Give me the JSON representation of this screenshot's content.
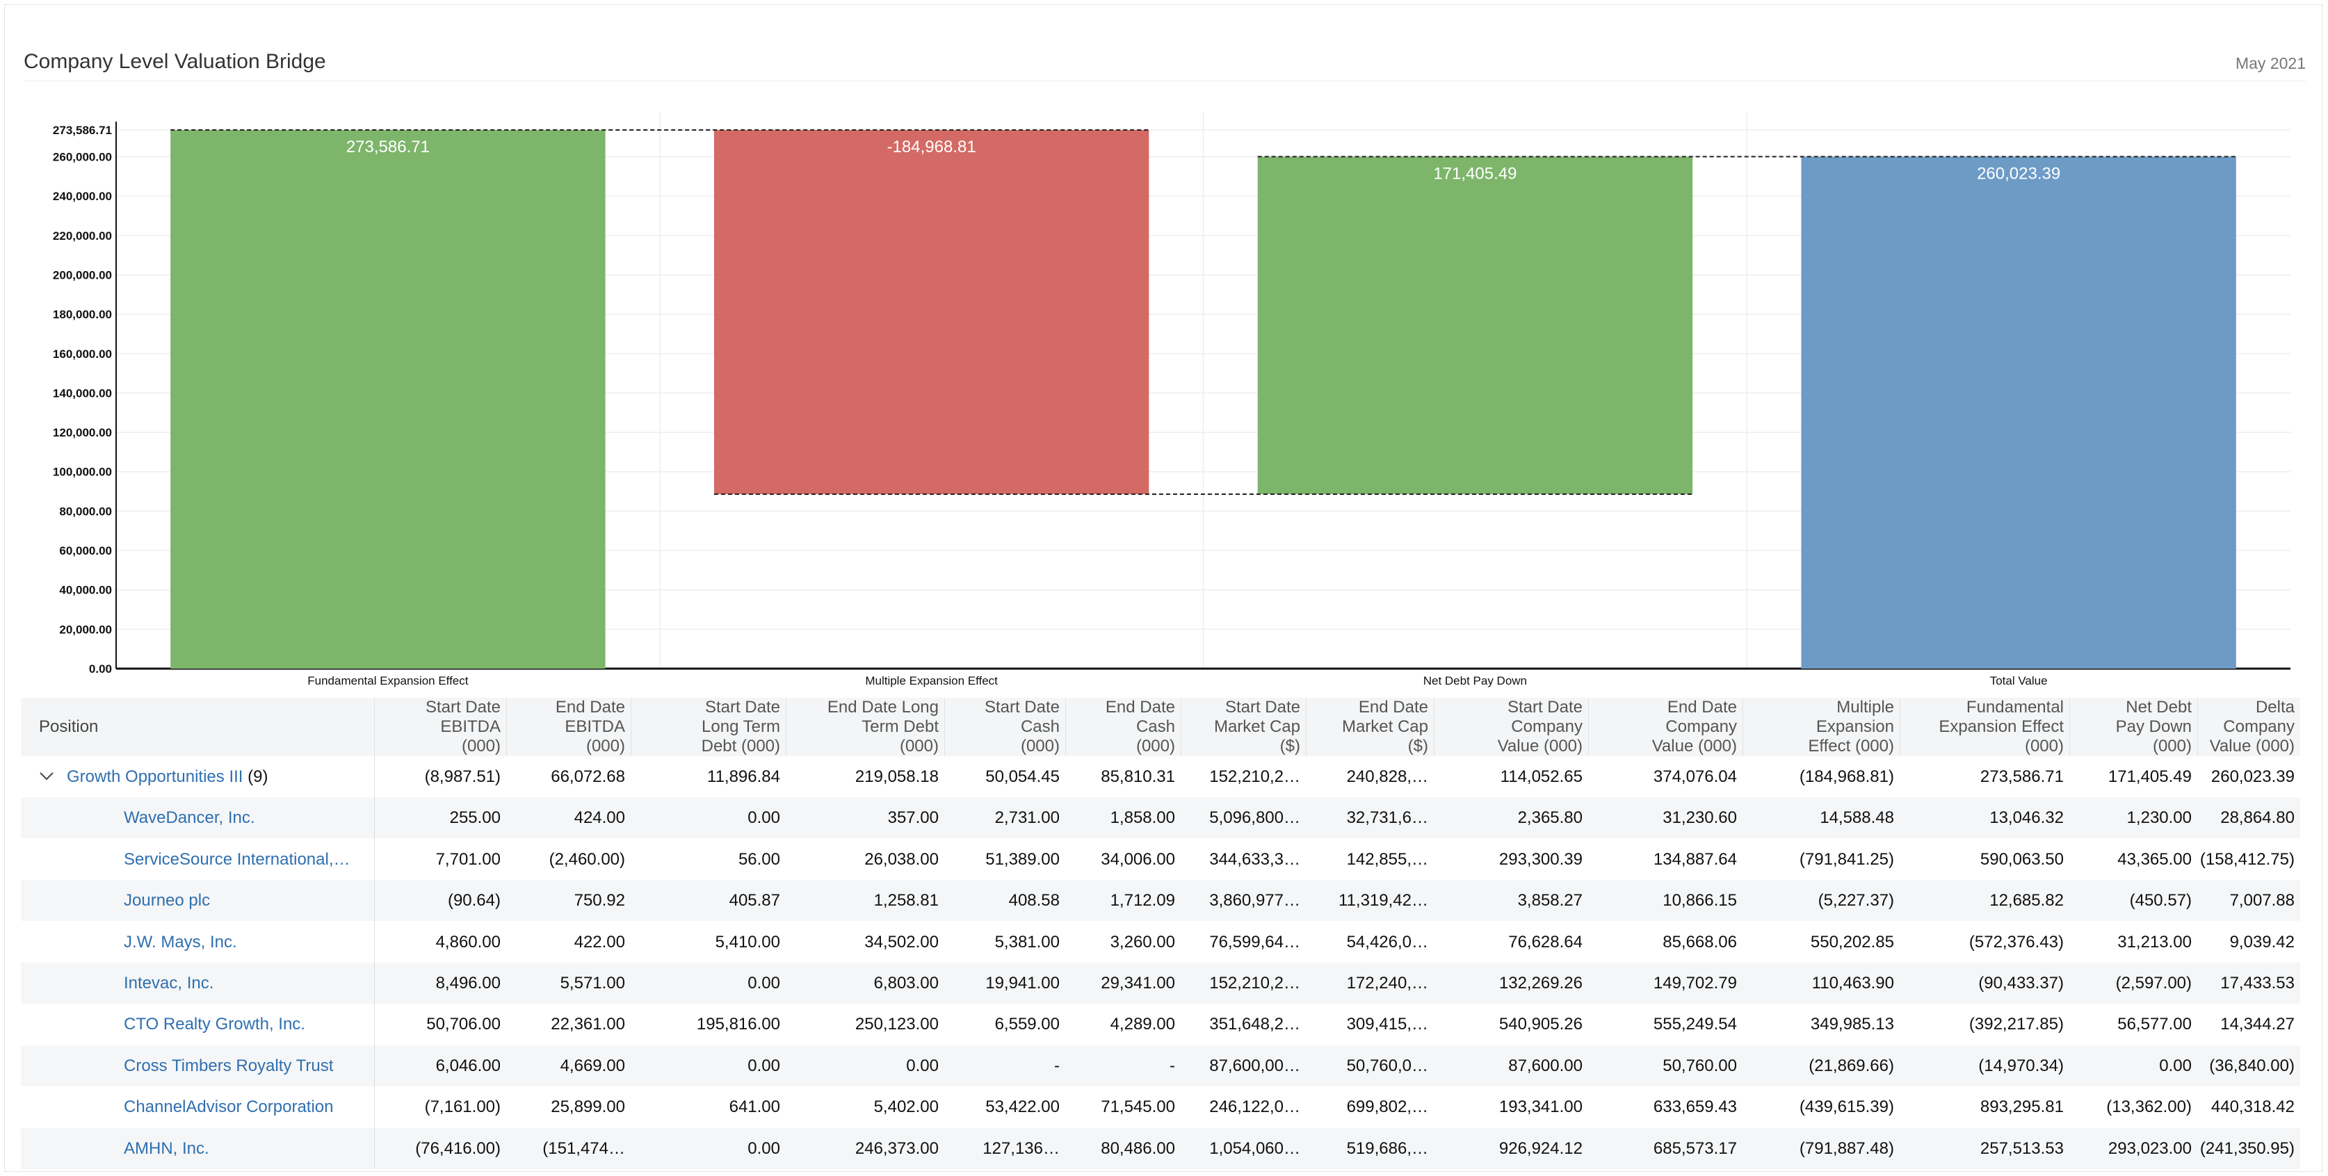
{
  "header": {
    "title": "Company Level Valuation Bridge",
    "period": "May 2021"
  },
  "colors": {
    "positive": "#7db56b",
    "negative": "#d46a65",
    "total": "#6d9bc6",
    "link": "#2f6fb0"
  },
  "chart_data": {
    "type": "waterfall",
    "title": "",
    "ylim": [
      0,
      273586.71
    ],
    "yticks": [
      0,
      20000,
      40000,
      60000,
      80000,
      100000,
      120000,
      140000,
      160000,
      180000,
      200000,
      220000,
      240000,
      260000,
      273586.71
    ],
    "ytick_labels": [
      "0.00",
      "20,000.00",
      "40,000.00",
      "60,000.00",
      "80,000.00",
      "100,000.00",
      "120,000.00",
      "140,000.00",
      "160,000.00",
      "180,000.00",
      "200,000.00",
      "220,000.00",
      "240,000.00",
      "260,000.00",
      "273,586.71"
    ],
    "grid": true,
    "bars": [
      {
        "category": "Fundamental Expansion Effect",
        "value": 273586.71,
        "label": "273,586.71",
        "kind": "positive"
      },
      {
        "category": "Multiple Expansion Effect",
        "value": -184968.81,
        "label": "-184,968.81",
        "kind": "negative"
      },
      {
        "category": "Net Debt Pay Down",
        "value": 171405.49,
        "label": "171,405.49",
        "kind": "positive"
      },
      {
        "category": "Total Value",
        "value": 260023.39,
        "label": "260,023.39",
        "kind": "total"
      }
    ]
  },
  "table": {
    "position_header": "Position",
    "columns": [
      "Start Date\nEBITDA\n(000)",
      "End Date\nEBITDA\n(000)",
      "Start Date\nLong Term\nDebt (000)",
      "End Date Long\nTerm Debt\n(000)",
      "Start Date\nCash\n(000)",
      "End Date\nCash\n(000)",
      "Start Date\nMarket Cap\n($)",
      "End Date\nMarket Cap\n($)",
      "Start Date\nCompany\nValue (000)",
      "End Date\nCompany\nValue (000)",
      "Multiple\nExpansion\nEffect (000)",
      "Fundamental\nExpansion Effect\n(000)",
      "Net Debt\nPay Down\n(000)",
      "Delta\nCompany\nValue (000)"
    ],
    "group": {
      "name": "Growth Opportunities III",
      "count": "(9)",
      "values": [
        "(8,987.51)",
        "66,072.68",
        "11,896.84",
        "219,058.18",
        "50,054.45",
        "85,810.31",
        "152,210,2…",
        "240,828,…",
        "114,052.65",
        "374,076.04",
        "(184,968.81)",
        "273,586.71",
        "171,405.49",
        "260,023.39"
      ]
    },
    "rows": [
      {
        "name": "WaveDancer, Inc.",
        "values": [
          "255.00",
          "424.00",
          "0.00",
          "357.00",
          "2,731.00",
          "1,858.00",
          "5,096,800…",
          "32,731,6…",
          "2,365.80",
          "31,230.60",
          "14,588.48",
          "13,046.32",
          "1,230.00",
          "28,864.80"
        ]
      },
      {
        "name": "ServiceSource International,…",
        "values": [
          "7,701.00",
          "(2,460.00)",
          "56.00",
          "26,038.00",
          "51,389.00",
          "34,006.00",
          "344,633,3…",
          "142,855,…",
          "293,300.39",
          "134,887.64",
          "(791,841.25)",
          "590,063.50",
          "43,365.00",
          "(158,412.75)"
        ]
      },
      {
        "name": "Journeo plc",
        "values": [
          "(90.64)",
          "750.92",
          "405.87",
          "1,258.81",
          "408.58",
          "1,712.09",
          "3,860,977…",
          "11,319,42…",
          "3,858.27",
          "10,866.15",
          "(5,227.37)",
          "12,685.82",
          "(450.57)",
          "7,007.88"
        ]
      },
      {
        "name": "J.W. Mays, Inc.",
        "values": [
          "4,860.00",
          "422.00",
          "5,410.00",
          "34,502.00",
          "5,381.00",
          "3,260.00",
          "76,599,64…",
          "54,426,0…",
          "76,628.64",
          "85,668.06",
          "550,202.85",
          "(572,376.43)",
          "31,213.00",
          "9,039.42"
        ]
      },
      {
        "name": "Intevac, Inc.",
        "values": [
          "8,496.00",
          "5,571.00",
          "0.00",
          "6,803.00",
          "19,941.00",
          "29,341.00",
          "152,210,2…",
          "172,240,…",
          "132,269.26",
          "149,702.79",
          "110,463.90",
          "(90,433.37)",
          "(2,597.00)",
          "17,433.53"
        ]
      },
      {
        "name": "CTO Realty Growth, Inc.",
        "values": [
          "50,706.00",
          "22,361.00",
          "195,816.00",
          "250,123.00",
          "6,559.00",
          "4,289.00",
          "351,648,2…",
          "309,415,…",
          "540,905.26",
          "555,249.54",
          "349,985.13",
          "(392,217.85)",
          "56,577.00",
          "14,344.27"
        ]
      },
      {
        "name": "Cross Timbers Royalty Trust",
        "values": [
          "6,046.00",
          "4,669.00",
          "0.00",
          "0.00",
          "-",
          "-",
          "87,600,00…",
          "50,760,0…",
          "87,600.00",
          "50,760.00",
          "(21,869.66)",
          "(14,970.34)",
          "0.00",
          "(36,840.00)"
        ]
      },
      {
        "name": "ChannelAdvisor Corporation",
        "values": [
          "(7,161.00)",
          "25,899.00",
          "641.00",
          "5,402.00",
          "53,422.00",
          "71,545.00",
          "246,122,0…",
          "699,802,…",
          "193,341.00",
          "633,659.43",
          "(439,615.39)",
          "893,295.81",
          "(13,362.00)",
          "440,318.42"
        ]
      },
      {
        "name": "AMHN, Inc.",
        "values": [
          "(76,416.00)",
          "(151,474…",
          "0.00",
          "246,373.00",
          "127,136…",
          "80,486.00",
          "1,054,060…",
          "519,686,…",
          "926,924.12",
          "685,573.17",
          "(791,887.48)",
          "257,513.53",
          "293,023.00",
          "(241,350.95)"
        ]
      }
    ]
  }
}
